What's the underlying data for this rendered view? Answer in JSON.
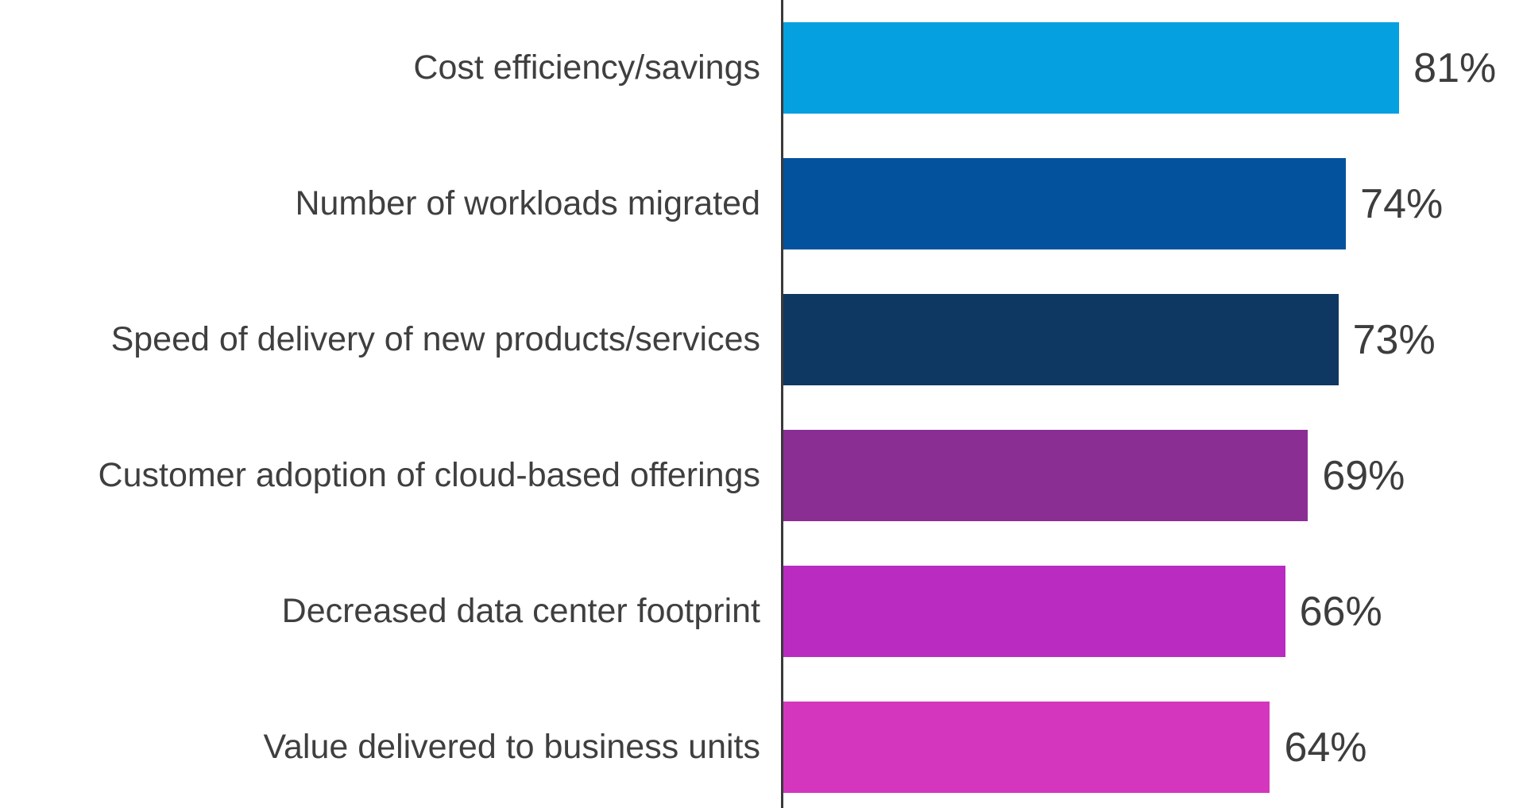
{
  "background_color": "#ffffff",
  "label_text_color": "#3f3f3f",
  "value_text_color": "#3d3d3d",
  "axis_color": "#3a3a3a",
  "chart_data": {
    "type": "bar",
    "orientation": "horizontal",
    "title": "",
    "xlabel": "",
    "ylabel": "",
    "xlim": [
      0,
      100
    ],
    "grid": false,
    "legend": false,
    "categories": [
      "Cost efficiency/savings",
      "Number of workloads migrated",
      "Speed of delivery of new products/services",
      "Customer adoption of cloud-based offerings",
      "Decreased data center footprint",
      "Value delivered to business units"
    ],
    "values": [
      81,
      74,
      73,
      69,
      66,
      64
    ],
    "value_labels": [
      "81%",
      "74%",
      "73%",
      "69%",
      "66%",
      "64%"
    ],
    "bar_colors": [
      "#04A0E0",
      "#02529E",
      "#0E3862",
      "#8B2E93",
      "#BA2BC2",
      "#D437BD"
    ]
  }
}
